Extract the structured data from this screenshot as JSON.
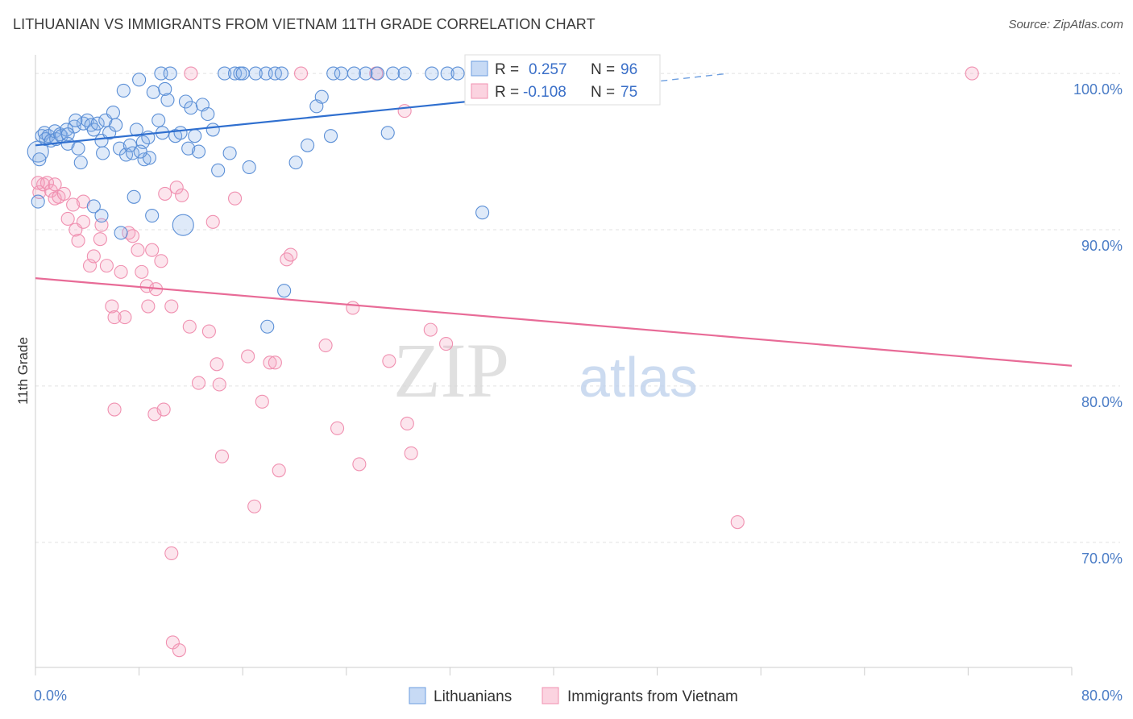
{
  "title": "LITHUANIAN VS IMMIGRANTS FROM VIETNAM 11TH GRADE CORRELATION CHART",
  "source": "Source: ZipAtlas.com",
  "watermark": {
    "zip": "ZIP",
    "atlas": "atlas"
  },
  "legend_box": {
    "rows": [
      {
        "r_label": "R =",
        "r_value": "0.257",
        "n_label": "N =",
        "n_value": "96",
        "color": "#6c9ee0"
      },
      {
        "r_label": "R =",
        "r_value": "-0.108",
        "n_label": "N =",
        "n_value": "75",
        "color": "#f090b0"
      }
    ]
  },
  "bottom_legend": [
    {
      "label": "Lithuanians",
      "color": "#6c9ee0"
    },
    {
      "label": "Immigrants from Vietnam",
      "color": "#f090b0"
    }
  ],
  "chart_data": {
    "type": "scatter",
    "title": "LITHUANIAN VS IMMIGRANTS FROM VIETNAM 11TH GRADE CORRELATION CHART",
    "xlabel": "",
    "ylabel": "11th Grade",
    "xlim": [
      0,
      80
    ],
    "ylim": [
      62,
      101.5
    ],
    "x_tick_labels": [
      "0.0%",
      "80.0%"
    ],
    "y_tick_labels": [
      "100.0%",
      "90.0%",
      "80.0%",
      "70.0%"
    ],
    "y_ticks": [
      100,
      90,
      80,
      70
    ],
    "grid": true,
    "series": [
      {
        "name": "Lithuanians",
        "color": "#6c9ee0",
        "trend": {
          "x0": 0,
          "y0": 95.4,
          "x1": 40.5,
          "y1": 98.8,
          "dashed_to_x": 53.5,
          "dashed_to_y": 100.0
        },
        "points": [
          [
            0.2,
            95.0
          ],
          [
            0.3,
            94.5
          ],
          [
            0.5,
            96.0
          ],
          [
            0.7,
            96.2
          ],
          [
            0.8,
            95.8
          ],
          [
            1.0,
            96.0
          ],
          [
            1.2,
            95.7
          ],
          [
            1.5,
            96.3
          ],
          [
            1.6,
            95.8
          ],
          [
            1.9,
            96.1
          ],
          [
            2.0,
            96.0
          ],
          [
            2.4,
            96.4
          ],
          [
            2.5,
            95.5
          ],
          [
            3.0,
            96.6
          ],
          [
            3.3,
            95.2
          ],
          [
            3.5,
            94.3
          ],
          [
            3.7,
            96.8
          ],
          [
            4.0,
            97.0
          ],
          [
            4.3,
            96.7
          ],
          [
            4.5,
            96.4
          ],
          [
            4.8,
            96.8
          ],
          [
            5.1,
            95.7
          ],
          [
            5.2,
            94.9
          ],
          [
            5.4,
            97.0
          ],
          [
            5.7,
            96.2
          ],
          [
            6.0,
            97.5
          ],
          [
            6.2,
            96.7
          ],
          [
            6.5,
            95.2
          ],
          [
            6.8,
            98.9
          ],
          [
            7.0,
            94.8
          ],
          [
            7.3,
            95.4
          ],
          [
            7.5,
            94.9
          ],
          [
            7.8,
            96.4
          ],
          [
            8.0,
            99.6
          ],
          [
            8.3,
            95.6
          ],
          [
            8.4,
            94.5
          ],
          [
            8.7,
            95.9
          ],
          [
            8.8,
            94.6
          ],
          [
            9.1,
            98.8
          ],
          [
            9.5,
            97.0
          ],
          [
            9.7,
            100.0
          ],
          [
            9.8,
            96.2
          ],
          [
            10.0,
            99.0
          ],
          [
            10.2,
            98.3
          ],
          [
            10.4,
            100.0
          ],
          [
            10.8,
            96.0
          ],
          [
            11.2,
            96.2
          ],
          [
            11.6,
            98.2
          ],
          [
            11.8,
            95.2
          ],
          [
            12.0,
            97.8
          ],
          [
            12.3,
            96.0
          ],
          [
            12.6,
            95.0
          ],
          [
            12.9,
            98.0
          ],
          [
            13.3,
            97.4
          ],
          [
            13.7,
            96.4
          ],
          [
            14.1,
            93.8
          ],
          [
            14.6,
            100.0
          ],
          [
            15.0,
            94.9
          ],
          [
            15.4,
            100.0
          ],
          [
            15.8,
            100.0
          ],
          [
            16.0,
            100.0
          ],
          [
            16.5,
            94.0
          ],
          [
            17.0,
            100.0
          ],
          [
            17.8,
            100.0
          ],
          [
            18.5,
            100.0
          ],
          [
            19.0,
            100.0
          ],
          [
            20.1,
            94.3
          ],
          [
            21.0,
            95.4
          ],
          [
            21.7,
            97.9
          ],
          [
            22.1,
            98.5
          ],
          [
            22.8,
            96.0
          ],
          [
            23.0,
            100.0
          ],
          [
            23.6,
            100.0
          ],
          [
            24.6,
            100.0
          ],
          [
            25.5,
            100.0
          ],
          [
            26.4,
            100.0
          ],
          [
            27.2,
            96.2
          ],
          [
            27.6,
            100.0
          ],
          [
            28.5,
            100.0
          ],
          [
            30.6,
            100.0
          ],
          [
            31.8,
            100.0
          ],
          [
            32.6,
            100.0
          ],
          [
            35.5,
            100.0
          ],
          [
            4.5,
            91.5
          ],
          [
            5.1,
            90.9
          ],
          [
            6.6,
            89.8
          ],
          [
            7.6,
            92.1
          ],
          [
            9.0,
            90.9
          ],
          [
            11.4,
            90.3
          ],
          [
            19.2,
            86.1
          ],
          [
            17.9,
            83.8
          ],
          [
            34.5,
            91.1
          ],
          [
            0.2,
            91.8
          ],
          [
            2.5,
            96.1
          ],
          [
            3.1,
            97.0
          ],
          [
            8.1,
            95.0
          ]
        ]
      },
      {
        "name": "Immigrants from Vietnam",
        "color": "#f090b0",
        "trend": {
          "x0": 0,
          "y0": 86.9,
          "x1": 80,
          "y1": 81.3
        },
        "points": [
          [
            0.3,
            92.4
          ],
          [
            0.6,
            92.9
          ],
          [
            0.9,
            93.0
          ],
          [
            1.2,
            92.5
          ],
          [
            1.5,
            92.0
          ],
          [
            1.8,
            92.1
          ],
          [
            2.2,
            92.3
          ],
          [
            2.5,
            90.7
          ],
          [
            2.9,
            91.6
          ],
          [
            3.1,
            90.0
          ],
          [
            3.3,
            89.3
          ],
          [
            3.7,
            90.5
          ],
          [
            4.2,
            87.7
          ],
          [
            4.5,
            88.3
          ],
          [
            5.0,
            89.4
          ],
          [
            5.1,
            90.3
          ],
          [
            5.5,
            87.7
          ],
          [
            5.9,
            85.1
          ],
          [
            6.1,
            84.4
          ],
          [
            6.6,
            87.3
          ],
          [
            6.9,
            84.4
          ],
          [
            7.2,
            89.8
          ],
          [
            7.5,
            89.6
          ],
          [
            7.9,
            88.7
          ],
          [
            8.2,
            87.3
          ],
          [
            8.6,
            86.4
          ],
          [
            8.7,
            85.1
          ],
          [
            9.0,
            88.7
          ],
          [
            9.3,
            86.2
          ],
          [
            9.7,
            88.0
          ],
          [
            10.0,
            92.3
          ],
          [
            10.5,
            85.1
          ],
          [
            10.9,
            92.7
          ],
          [
            11.3,
            92.2
          ],
          [
            11.9,
            83.8
          ],
          [
            12.0,
            100.0
          ],
          [
            12.6,
            80.2
          ],
          [
            13.4,
            83.5
          ],
          [
            13.7,
            90.5
          ],
          [
            14.0,
            81.4
          ],
          [
            14.2,
            80.1
          ],
          [
            14.4,
            75.5
          ],
          [
            15.4,
            92.0
          ],
          [
            16.4,
            81.9
          ],
          [
            16.9,
            72.3
          ],
          [
            17.5,
            79.0
          ],
          [
            18.1,
            81.5
          ],
          [
            18.5,
            81.5
          ],
          [
            18.8,
            74.6
          ],
          [
            19.4,
            88.1
          ],
          [
            19.7,
            88.4
          ],
          [
            20.5,
            100.0
          ],
          [
            22.4,
            82.6
          ],
          [
            23.3,
            77.3
          ],
          [
            24.5,
            85.0
          ],
          [
            25.0,
            75.0
          ],
          [
            26.3,
            100.0
          ],
          [
            27.3,
            81.6
          ],
          [
            28.5,
            97.6
          ],
          [
            28.7,
            77.6
          ],
          [
            29.0,
            75.7
          ],
          [
            30.5,
            83.6
          ],
          [
            31.7,
            82.7
          ],
          [
            33.8,
            100.0
          ],
          [
            6.1,
            78.5
          ],
          [
            9.2,
            78.2
          ],
          [
            9.9,
            78.5
          ],
          [
            10.5,
            69.3
          ],
          [
            10.6,
            63.6
          ],
          [
            11.1,
            63.1
          ],
          [
            54.2,
            71.3
          ],
          [
            72.3,
            100.0
          ],
          [
            0.2,
            93.0
          ],
          [
            1.5,
            92.9
          ],
          [
            3.7,
            91.8
          ]
        ]
      }
    ]
  }
}
